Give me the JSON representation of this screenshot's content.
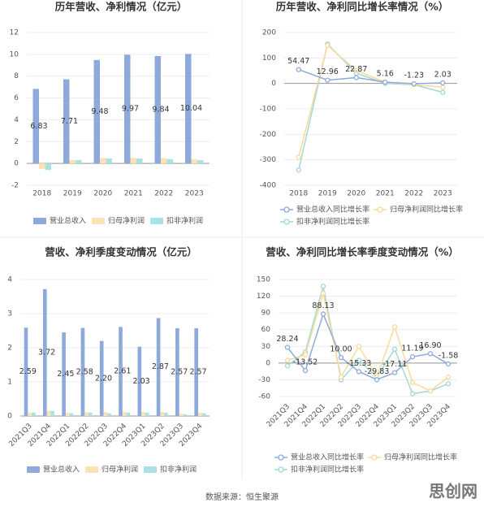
{
  "chart_data": [
    {
      "type": "bar",
      "title": "历年营收、净利情况（亿元）",
      "categories": [
        "2018",
        "2019",
        "2020",
        "2021",
        "2022",
        "2023"
      ],
      "series": [
        {
          "name": "营业总收入",
          "color": "#8eaadb",
          "values": [
            6.83,
            7.71,
            9.48,
            9.97,
            9.84,
            10.04
          ]
        },
        {
          "name": "归母净利润",
          "color": "#fde2b3",
          "values": [
            -0.5,
            0.3,
            0.5,
            0.5,
            0.5,
            0.4
          ]
        },
        {
          "name": "扣非净利润",
          "color": "#a9e2e2",
          "values": [
            -0.6,
            0.3,
            0.45,
            0.45,
            0.4,
            0.3
          ]
        }
      ],
      "ylim": [
        -2,
        12
      ],
      "yticks": [
        -2,
        0,
        2,
        4,
        6,
        8,
        10,
        12
      ],
      "grid": true
    },
    {
      "type": "line",
      "title": "历年营收、净利同比增长率情况（%）",
      "categories": [
        "2018",
        "2019",
        "2020",
        "2021",
        "2022",
        "2023"
      ],
      "series": [
        {
          "name": "营业总收入同比增长率",
          "color": "#8eaadb",
          "values": [
            54.47,
            12.96,
            22.87,
            5.16,
            -1.23,
            2.03
          ]
        },
        {
          "name": "归母净利润同比增长率",
          "color": "#fbd99a",
          "values": [
            -290,
            150,
            50,
            5,
            -5,
            -15
          ]
        },
        {
          "name": "扣非净利润同比增长率",
          "color": "#9fd9d6",
          "values": [
            -340,
            155,
            40,
            0,
            -5,
            -35
          ]
        }
      ],
      "ylim": [
        -400,
        200
      ],
      "yticks": [
        -400,
        -300,
        -200,
        -100,
        0,
        100,
        200
      ],
      "grid": true
    },
    {
      "type": "bar",
      "title": "营收、净利季度变动情况（亿元）",
      "categories": [
        "2021Q3",
        "2021Q4",
        "2022Q1",
        "2022Q2",
        "2022Q3",
        "2022Q4",
        "2023Q1",
        "2023Q2",
        "2023Q3",
        "2023Q4"
      ],
      "series": [
        {
          "name": "营业总收入",
          "color": "#8eaadb",
          "values": [
            2.59,
            3.72,
            2.45,
            2.58,
            2.2,
            2.61,
            2.03,
            2.87,
            2.57,
            2.57
          ],
          "value_labels": [
            "2.59",
            "3.72",
            "2.45",
            "2.58",
            "2.20",
            "2.61",
            "2.03",
            "2.87",
            "2.57",
            "2.57"
          ]
        },
        {
          "name": "归母净利润",
          "color": "#fde2b3",
          "values": [
            0.1,
            0.15,
            0.1,
            0.12,
            0.12,
            0.12,
            0.12,
            0.12,
            0.07,
            0.1
          ]
        },
        {
          "name": "扣非净利润",
          "color": "#a9e2e2",
          "values": [
            0.1,
            0.15,
            0.08,
            0.1,
            0.08,
            0.1,
            0.1,
            0.1,
            0.05,
            0.08
          ]
        }
      ],
      "ylim": [
        0,
        4
      ],
      "yticks": [
        0,
        1,
        2,
        3,
        4
      ],
      "grid": true
    },
    {
      "type": "line",
      "title": "营收、净利同比增长率季度变动情况（%）",
      "categories": [
        "2021Q3",
        "2021Q4",
        "2022Q1",
        "2022Q2",
        "2022Q3",
        "2022Q4",
        "2023Q1",
        "2023Q2",
        "2023Q3",
        "2023Q4"
      ],
      "series": [
        {
          "name": "营业总收入同比增长率",
          "color": "#8eaadb",
          "values": [
            28.24,
            -13.52,
            88.13,
            10.0,
            -15.33,
            -29.83,
            -17.11,
            11.19,
            16.9,
            -1.58
          ],
          "value_labels": [
            "28.24",
            "-13.52",
            "88.13",
            "10.00",
            "-15.33",
            "-29.83",
            "-17.11",
            "11.19",
            "16.90",
            "-1.58"
          ]
        },
        {
          "name": "归母净利润同比增长率",
          "color": "#fbd99a",
          "values": [
            5,
            15,
            125,
            -25,
            30,
            -25,
            65,
            -35,
            -50,
            -25
          ]
        },
        {
          "name": "扣非净利润同比增长率",
          "color": "#9fd9d6",
          "values": [
            -5,
            20,
            138,
            -30,
            5,
            -25,
            25,
            -55,
            -50,
            -37
          ]
        }
      ],
      "ylim": [
        -60,
        150
      ],
      "yticks": [
        -60,
        -30,
        0,
        30,
        60,
        90,
        120,
        150
      ],
      "grid": true
    }
  ],
  "source": "数据来源：恒生聚源",
  "watermark": "思创网"
}
